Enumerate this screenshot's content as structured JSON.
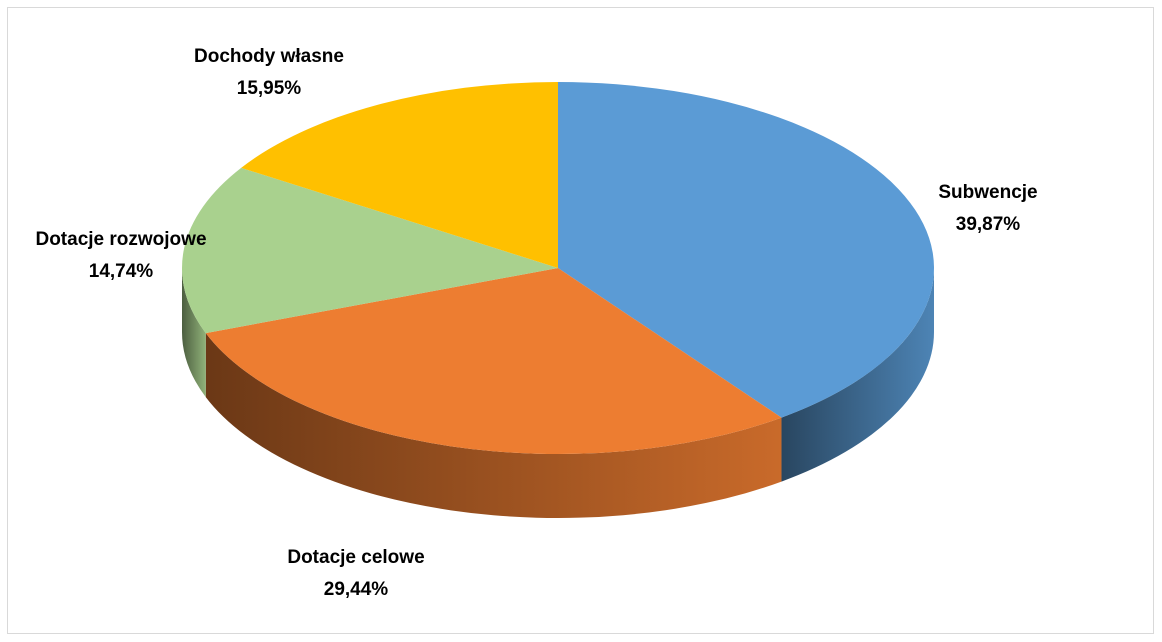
{
  "chart_data": {
    "type": "pie",
    "title": "",
    "categories": [
      "Subwencje",
      "Dotacje celowe",
      "Dotacje rozwojowe",
      "Dochody własne"
    ],
    "values": [
      39.87,
      29.44,
      14.74,
      15.95
    ],
    "value_labels": [
      "39,87%",
      "29,44%",
      "14,74%",
      "15,95%"
    ],
    "colors": [
      "#5b9bd5",
      "#ed7d31",
      "#a9d18e",
      "#ffc000"
    ],
    "style": "3d",
    "legend": "none"
  }
}
